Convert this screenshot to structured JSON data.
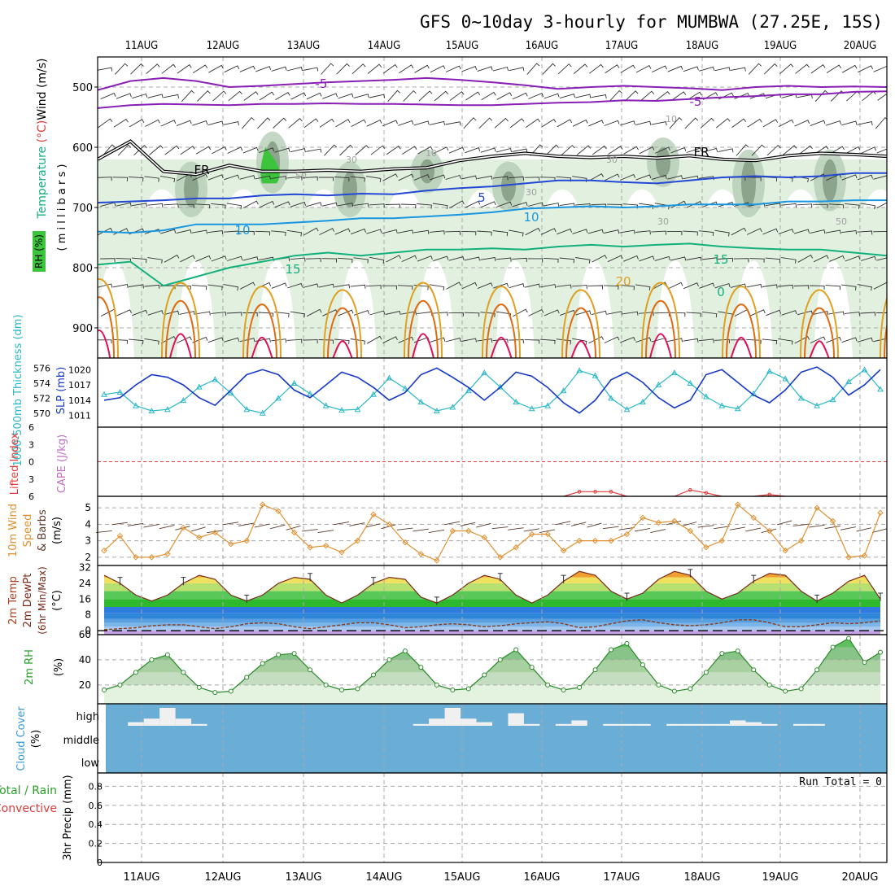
{
  "title": "GFS 0~10day 3-hourly for MUMBWA (27.25E, 15S)",
  "dates": [
    "11AUG",
    "12AUG",
    "13AUG",
    "14AUG",
    "15AUG",
    "16AUG",
    "17AUG",
    "18AUG",
    "19AUG",
    "20AUG"
  ],
  "colors": {
    "frame": "#000000",
    "grid": "#a8a8a8",
    "sounding_temp_minus5": "#8a1fb5",
    "sounding_temp_0": "#000000",
    "sounding_temp_5": "#2448d6",
    "sounding_temp_10": "#1996e0",
    "sounding_temp_15": "#12b07a",
    "sounding_temp_20": "#e0a020",
    "sounding_temp_25": "#e06a10",
    "sounding_temp_30": "#e0105a",
    "rh_light": "#e2f0e0",
    "rh_mid": "#b6cdb6",
    "rh_dark": "#6f8b6f",
    "rh_sat": "#3cc43c",
    "thickness": "#2ab7c8",
    "slp": "#1638c8",
    "lifted_zero": "#e03a3a",
    "cape": "#e03a3a",
    "wind10": "#e09030",
    "barb10": "#5a3a2a",
    "dewpt": "#8a3a1a",
    "rh2m": "#5ab85a",
    "cloud_bg": "#6aaed6",
    "cloud_bar": "#f0f0f0"
  },
  "chart_data": [
    {
      "panel": "upper-air",
      "type": "contour",
      "ylabel_parts": [
        "Wind (m/s)",
        "Temperature (°C)"
      ],
      "ylabel_units": "millibars",
      "rh_label": "RH (%)",
      "y_ticks": [
        500,
        600,
        700,
        800,
        900
      ],
      "ylim": [
        450,
        950
      ],
      "y_inverted": true,
      "series": [
        {
          "name": "-5",
          "level_mb": [
            505,
            490,
            485,
            490,
            500,
            498,
            495,
            492,
            490,
            488,
            485,
            488,
            492,
            497,
            503,
            500,
            498,
            500,
            502,
            505,
            500,
            498,
            500,
            499,
            500
          ]
        },
        {
          "name": "-5",
          "level_mb": [
            535,
            530,
            528,
            529,
            530,
            528,
            528,
            527,
            528,
            528,
            529,
            530,
            530,
            528,
            526,
            525,
            522,
            523,
            520,
            517,
            515,
            512,
            512,
            508,
            507
          ]
        },
        {
          "name": "FR",
          "level_mb": [
            620,
            590,
            640,
            645,
            630,
            640,
            640,
            638,
            640,
            636,
            634,
            622,
            615,
            610,
            615,
            617,
            615,
            618,
            614,
            620,
            622,
            614,
            610,
            612,
            615
          ]
        },
        {
          "name": "5",
          "level_mb": [
            692,
            690,
            688,
            685,
            685,
            680,
            678,
            680,
            677,
            678,
            672,
            668,
            665,
            660,
            655,
            655,
            658,
            660,
            655,
            650,
            648,
            650,
            648,
            643,
            643
          ]
        },
        {
          "name": "10",
          "level_mb": [
            740,
            742,
            738,
            728,
            728,
            728,
            725,
            722,
            718,
            718,
            715,
            712,
            708,
            702,
            700,
            698,
            700,
            698,
            695,
            695,
            695,
            690,
            690,
            688,
            688
          ]
        },
        {
          "name": "15",
          "level_mb": [
            795,
            790,
            830,
            815,
            800,
            790,
            780,
            775,
            780,
            775,
            770,
            770,
            768,
            770,
            765,
            762,
            765,
            762,
            760,
            765,
            768,
            770,
            770,
            775,
            780
          ]
        }
      ],
      "labels": [
        "-5",
        "-5",
        "10",
        "FR",
        "FR",
        "5",
        "10",
        "10",
        "15",
        "15",
        "20",
        "10",
        "30",
        "30",
        "30",
        "30",
        "50",
        "50",
        "0"
      ]
    },
    {
      "panel": "thickness-slp",
      "type": "line",
      "ylabel_left": "1000-500mb Thickness (dm)",
      "ylabel_right": "SLP (mb)",
      "ticks_left": [
        570,
        572,
        574,
        576
      ],
      "ticks_right": [
        1011,
        1014,
        1017,
        1020
      ],
      "series": [
        {
          "name": "thickness",
          "values": [
            572.5,
            572.8,
            571,
            570.3,
            570.5,
            571.7,
            573.5,
            574.5,
            572.7,
            570.5,
            570,
            572,
            574,
            572.6,
            571,
            570.4,
            570.5,
            572.5,
            574.7,
            573.3,
            571.5,
            570.3,
            570.8,
            573,
            575.4,
            573.5,
            571.5,
            570.6,
            571,
            573,
            575.7,
            575,
            572,
            570.5,
            571.5,
            573.8,
            575.4,
            574,
            572.2,
            571,
            570.6,
            572.6,
            575.6,
            574.6,
            572,
            571,
            571.8,
            574.2,
            575.8,
            573.2
          ]
        },
        {
          "name": "slp",
          "values": [
            1014,
            1014.5,
            1017,
            1019,
            1018.5,
            1017,
            1014.5,
            1013,
            1016,
            1019,
            1020,
            1019,
            1016,
            1014.5,
            1017,
            1019.5,
            1018.5,
            1016.5,
            1014,
            1015.5,
            1019,
            1020.3,
            1018.5,
            1016.5,
            1014,
            1016.5,
            1019.5,
            1018.7,
            1016.5,
            1013.5,
            1011.5,
            1014,
            1018,
            1019.5,
            1017.5,
            1014.5,
            1012.5,
            1014,
            1019,
            1020,
            1017.5,
            1015,
            1013.5,
            1016,
            1019.5,
            1020.5,
            1018.5,
            1015,
            1017,
            1020
          ]
        }
      ]
    },
    {
      "panel": "lifted-cape",
      "type": "line",
      "ylabel_left": "Lifted Index",
      "ylabel_right": "CAPE (J/kg)",
      "ticks": [
        -6,
        -3,
        0,
        3,
        6
      ],
      "ylim": [
        -6,
        6
      ],
      "series": [
        {
          "name": "lifted",
          "values": [
            6,
            6,
            6,
            6,
            6,
            6,
            6,
            6,
            6,
            6,
            6,
            6,
            6,
            6,
            6,
            6,
            6,
            6,
            6,
            6,
            6,
            6,
            6,
            6,
            6,
            6,
            6,
            6,
            6,
            6,
            5.2,
            5.2,
            5.2,
            6,
            6,
            6,
            6,
            4.9,
            5.4,
            6,
            6,
            6,
            5.7,
            6,
            6,
            6,
            6,
            6,
            6,
            6
          ]
        }
      ]
    },
    {
      "panel": "wind10m",
      "type": "line",
      "ylabel": "10m Wind Speed & Barbs (m/s)",
      "ticks": [
        2,
        3,
        4,
        5
      ],
      "ylim": [
        1.5,
        5.7
      ],
      "series": [
        {
          "name": "speed",
          "values": [
            2.4,
            3.3,
            2,
            2,
            2.2,
            3.8,
            3.2,
            3.5,
            2.8,
            3,
            5.2,
            4.8,
            3.5,
            2.6,
            2.7,
            2.3,
            3,
            4.6,
            4,
            2.9,
            2.2,
            1.8,
            3.6,
            3.6,
            3.2,
            2,
            2.6,
            3.4,
            3.4,
            2.4,
            3,
            3,
            3,
            3.4,
            4.4,
            4.1,
            4.2,
            3.6,
            2.6,
            3,
            5.2,
            4.4,
            3.6,
            2.4,
            3,
            5,
            4.2,
            2,
            2.1,
            4.7
          ]
        }
      ]
    },
    {
      "panel": "temp2m",
      "type": "area",
      "ylabel": "2m Temp 2m DewPt (6hr Min/Max) (°C)",
      "ticks": [
        0,
        8,
        16,
        24,
        32
      ],
      "ylim": [
        -2,
        33
      ],
      "series": [
        {
          "name": "temp",
          "values": [
            28,
            24,
            18,
            15,
            18,
            24,
            28,
            26,
            18,
            15,
            18,
            24,
            27,
            26,
            18,
            14,
            18,
            24,
            27,
            26,
            17,
            14,
            18,
            24,
            28,
            26,
            18,
            14,
            18,
            25,
            30,
            28,
            20,
            16,
            19,
            26,
            30,
            28,
            20,
            16,
            19,
            25,
            29,
            28,
            20,
            15,
            19,
            25,
            28,
            16
          ]
        },
        {
          "name": "dewpt",
          "values": [
            0.5,
            1,
            1.5,
            2.5,
            3,
            3,
            2,
            1,
            2,
            3.5,
            4,
            3.5,
            2,
            1,
            2,
            3,
            4,
            4,
            3,
            1.5,
            2,
            3,
            3.5,
            3,
            2,
            2.5,
            3.5,
            4,
            4.5,
            3.5,
            1.5,
            2,
            3.5,
            5,
            5.5,
            4,
            3,
            2.5,
            3,
            4,
            5.5,
            5.5,
            4,
            2,
            2,
            3,
            4,
            3.5,
            4,
            5
          ]
        }
      ]
    },
    {
      "panel": "rh2m",
      "type": "area",
      "ylabel": "2m RH (%)",
      "ticks": [
        20,
        40,
        60
      ],
      "ylim": [
        5,
        60
      ],
      "series": [
        {
          "name": "rh",
          "values": [
            16,
            20,
            30,
            40,
            44,
            30,
            18,
            14,
            15,
            26,
            37,
            44,
            45,
            32,
            20,
            16,
            17,
            28,
            40,
            47,
            34,
            20,
            16,
            17,
            28,
            40,
            48,
            34,
            20,
            16,
            18,
            32,
            48,
            53,
            36,
            20,
            15,
            17,
            30,
            45,
            47,
            32,
            20,
            15,
            17,
            32,
            50,
            57,
            38,
            46
          ]
        }
      ]
    },
    {
      "panel": "cloud",
      "type": "bar",
      "ylabel": "Cloud Cover (%)",
      "levels": [
        "high",
        "middle",
        "low"
      ],
      "series": [
        {
          "name": "high",
          "values": [
            0,
            0,
            20,
            40,
            100,
            40,
            10,
            0,
            0,
            0,
            0,
            0,
            0,
            0,
            0,
            0,
            0,
            0,
            0,
            0,
            10,
            40,
            100,
            40,
            20,
            0,
            70,
            10,
            0,
            10,
            30,
            0,
            10,
            10,
            10,
            0,
            10,
            10,
            10,
            10,
            30,
            20,
            10,
            0,
            10,
            10,
            0,
            0,
            0,
            0
          ]
        }
      ]
    },
    {
      "panel": "precip",
      "type": "bar",
      "ylabel_left": "Total / Rain",
      "ylabel_left2": "Convective",
      "ylabel_right": "3hr Precip (mm)",
      "ticks": [
        0,
        0.2,
        0.4,
        0.6,
        0.8
      ],
      "ylim": [
        0,
        0.94
      ],
      "run_total": "Run Total = 0",
      "series": [
        {
          "name": "precip",
          "values": []
        }
      ]
    }
  ]
}
